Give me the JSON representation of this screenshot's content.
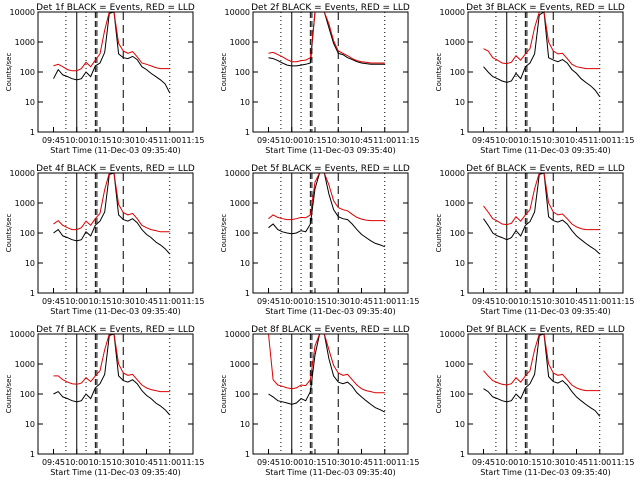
{
  "figure": {
    "xlabel": "Start Time (11-Dec-03 09:35:40)",
    "ylabel": "Counts/sec",
    "x_ticks": [
      "09:45",
      "10:00",
      "10:15",
      "10:30",
      "10:45",
      "11:00",
      "11:15"
    ],
    "y_ticks": [
      "1",
      "10",
      "100",
      "1000",
      "10000"
    ],
    "colors": {
      "events": "#000000",
      "lld": "#dd0000",
      "axes": "#000000",
      "background": "#ffffff"
    }
  },
  "chart_data": [
    {
      "type": "line",
      "title": "Det 1f BLACK = Events, RED = LLD",
      "xlim": [
        "09:35",
        "11:15"
      ],
      "ylim": [
        1,
        10000
      ],
      "yscale": "log",
      "x": [
        "09:45",
        "09:48",
        "09:51",
        "09:54",
        "09:57",
        "10:00",
        "10:03",
        "10:06",
        "10:09",
        "10:12",
        "10:15",
        "10:18",
        "10:21",
        "10:24",
        "10:27",
        "10:30",
        "10:33",
        "10:36",
        "10:39",
        "10:42",
        "10:45",
        "10:48",
        "10:51",
        "10:54",
        "10:57",
        "11:00"
      ],
      "series": [
        {
          "name": "Events",
          "color": "#000000",
          "values": [
            60,
            120,
            80,
            70,
            60,
            55,
            60,
            100,
            70,
            160,
            200,
            450,
            9000,
            10000,
            400,
            300,
            280,
            330,
            260,
            150,
            120,
            90,
            70,
            55,
            40,
            20
          ]
        },
        {
          "name": "LLD",
          "color": "#dd0000",
          "values": [
            160,
            180,
            150,
            120,
            110,
            110,
            130,
            210,
            150,
            250,
            400,
            2500,
            10000,
            10000,
            900,
            500,
            420,
            480,
            320,
            200,
            180,
            160,
            140,
            130,
            130,
            130
          ]
        }
      ]
    },
    {
      "type": "line",
      "title": "Det 2f BLACK = Events, RED = LLD",
      "xlim": [
        "09:35",
        "11:15"
      ],
      "ylim": [
        1,
        10000
      ],
      "yscale": "log",
      "x": [
        "09:45",
        "09:48",
        "09:51",
        "09:54",
        "09:57",
        "10:00",
        "10:03",
        "10:06",
        "10:09",
        "10:12",
        "10:15",
        "10:18",
        "10:21",
        "10:24",
        "10:27",
        "10:30",
        "10:33",
        "10:36",
        "10:39",
        "10:42",
        "10:45",
        "10:48",
        "10:51",
        "10:54",
        "10:57",
        "11:00"
      ],
      "series": [
        {
          "name": "Events",
          "color": "#000000",
          "values": [
            300,
            280,
            240,
            200,
            170,
            160,
            160,
            170,
            180,
            200,
            10000,
            10000,
            10000,
            3000,
            900,
            420,
            380,
            300,
            260,
            220,
            200,
            190,
            180,
            180,
            180,
            180
          ]
        },
        {
          "name": "LLD",
          "color": "#dd0000",
          "values": [
            420,
            450,
            380,
            320,
            260,
            220,
            220,
            240,
            250,
            300,
            10000,
            10000,
            10000,
            4000,
            1100,
            500,
            420,
            350,
            280,
            240,
            220,
            210,
            200,
            200,
            200,
            200
          ]
        }
      ]
    },
    {
      "type": "line",
      "title": "Det 3f BLACK = Events, RED = LLD",
      "xlim": [
        "09:35",
        "11:15"
      ],
      "ylim": [
        1,
        10000
      ],
      "yscale": "log",
      "x": [
        "09:45",
        "09:48",
        "09:51",
        "09:54",
        "09:57",
        "10:00",
        "10:03",
        "10:06",
        "10:09",
        "10:12",
        "10:15",
        "10:18",
        "10:21",
        "10:24",
        "10:27",
        "10:30",
        "10:33",
        "10:36",
        "10:39",
        "10:42",
        "10:45",
        "10:48",
        "10:51",
        "10:54",
        "10:57",
        "11:00"
      ],
      "series": [
        {
          "name": "Events",
          "color": "#000000",
          "values": [
            150,
            100,
            70,
            60,
            50,
            45,
            50,
            90,
            60,
            150,
            200,
            400,
            8000,
            10000,
            300,
            250,
            220,
            260,
            200,
            120,
            90,
            60,
            45,
            35,
            25,
            15
          ]
        },
        {
          "name": "LLD",
          "color": "#dd0000",
          "values": [
            600,
            500,
            300,
            250,
            200,
            190,
            210,
            350,
            250,
            400,
            600,
            3000,
            10000,
            10000,
            1000,
            500,
            400,
            420,
            280,
            180,
            150,
            140,
            130,
            130,
            130,
            130
          ]
        }
      ]
    },
    {
      "type": "line",
      "title": "Det 4f BLACK = Events, RED = LLD",
      "xlim": [
        "09:35",
        "11:15"
      ],
      "ylim": [
        1,
        10000
      ],
      "yscale": "log",
      "x": [
        "09:45",
        "09:48",
        "09:51",
        "09:54",
        "09:57",
        "10:00",
        "10:03",
        "10:06",
        "10:09",
        "10:12",
        "10:15",
        "10:18",
        "10:21",
        "10:24",
        "10:27",
        "10:30",
        "10:33",
        "10:36",
        "10:39",
        "10:42",
        "10:45",
        "10:48",
        "10:51",
        "10:54",
        "10:57",
        "11:00"
      ],
      "series": [
        {
          "name": "Events",
          "color": "#000000",
          "values": [
            100,
            130,
            80,
            70,
            60,
            55,
            60,
            110,
            80,
            180,
            250,
            500,
            9000,
            10000,
            400,
            280,
            250,
            300,
            220,
            130,
            90,
            70,
            50,
            40,
            30,
            20
          ]
        },
        {
          "name": "LLD",
          "color": "#dd0000",
          "values": [
            200,
            260,
            180,
            150,
            130,
            130,
            150,
            250,
            180,
            300,
            450,
            2800,
            10000,
            10000,
            900,
            480,
            400,
            450,
            300,
            180,
            150,
            130,
            120,
            110,
            110,
            110
          ]
        }
      ]
    },
    {
      "type": "line",
      "title": "Det 5f BLACK = Events, RED = LLD",
      "xlim": [
        "09:35",
        "11:15"
      ],
      "ylim": [
        1,
        10000
      ],
      "yscale": "log",
      "x": [
        "09:45",
        "09:48",
        "09:51",
        "09:54",
        "09:57",
        "10:00",
        "10:03",
        "10:06",
        "10:09",
        "10:12",
        "10:15",
        "10:18",
        "10:21",
        "10:24",
        "10:27",
        "10:30",
        "10:33",
        "10:36",
        "10:39",
        "10:42",
        "10:45",
        "10:48",
        "10:51",
        "10:54",
        "10:57",
        "11:00"
      ],
      "series": [
        {
          "name": "Events",
          "color": "#000000",
          "values": [
            150,
            200,
            130,
            110,
            100,
            95,
            100,
            120,
            110,
            200,
            3000,
            10000,
            10000,
            2000,
            600,
            350,
            300,
            280,
            200,
            130,
            90,
            70,
            55,
            45,
            40,
            35
          ]
        },
        {
          "name": "LLD",
          "color": "#dd0000",
          "values": [
            300,
            400,
            330,
            300,
            280,
            280,
            300,
            330,
            320,
            400,
            5000,
            10000,
            10000,
            4000,
            1200,
            700,
            600,
            550,
            420,
            330,
            290,
            270,
            260,
            260,
            260,
            260
          ]
        }
      ]
    },
    {
      "type": "line",
      "title": "Det 6f BLACK = Events, RED = LLD",
      "xlim": [
        "09:35",
        "11:15"
      ],
      "ylim": [
        1,
        10000
      ],
      "yscale": "log",
      "x": [
        "09:45",
        "09:48",
        "09:51",
        "09:54",
        "09:57",
        "10:00",
        "10:03",
        "10:06",
        "10:09",
        "10:12",
        "10:15",
        "10:18",
        "10:21",
        "10:24",
        "10:27",
        "10:30",
        "10:33",
        "10:36",
        "10:39",
        "10:42",
        "10:45",
        "10:48",
        "10:51",
        "10:54",
        "10:57",
        "11:00"
      ],
      "series": [
        {
          "name": "Events",
          "color": "#000000",
          "values": [
            300,
            180,
            100,
            80,
            70,
            60,
            70,
            120,
            80,
            180,
            240,
            500,
            9000,
            10000,
            350,
            260,
            230,
            270,
            200,
            120,
            80,
            60,
            45,
            35,
            28,
            20
          ]
        },
        {
          "name": "LLD",
          "color": "#dd0000",
          "values": [
            800,
            500,
            300,
            250,
            200,
            190,
            210,
            350,
            250,
            400,
            600,
            3000,
            10000,
            10000,
            1000,
            500,
            400,
            430,
            300,
            200,
            160,
            140,
            130,
            130,
            130,
            130
          ]
        }
      ]
    },
    {
      "type": "line",
      "title": "Det 7f BLACK = Events, RED = LLD",
      "xlim": [
        "09:35",
        "11:15"
      ],
      "ylim": [
        1,
        10000
      ],
      "yscale": "log",
      "x": [
        "09:45",
        "09:48",
        "09:51",
        "09:54",
        "09:57",
        "10:00",
        "10:03",
        "10:06",
        "10:09",
        "10:12",
        "10:15",
        "10:18",
        "10:21",
        "10:24",
        "10:27",
        "10:30",
        "10:33",
        "10:36",
        "10:39",
        "10:42",
        "10:45",
        "10:48",
        "10:51",
        "10:54",
        "10:57",
        "11:00"
      ],
      "series": [
        {
          "name": "Events",
          "color": "#000000",
          "values": [
            100,
            120,
            80,
            70,
            60,
            55,
            60,
            100,
            70,
            160,
            220,
            450,
            9000,
            10000,
            400,
            280,
            250,
            300,
            220,
            130,
            90,
            70,
            50,
            40,
            30,
            20
          ]
        },
        {
          "name": "LLD",
          "color": "#dd0000",
          "values": [
            400,
            400,
            300,
            250,
            220,
            210,
            230,
            350,
            260,
            400,
            600,
            3000,
            10000,
            10000,
            1000,
            500,
            420,
            450,
            300,
            200,
            160,
            140,
            130,
            120,
            120,
            120
          ]
        }
      ]
    },
    {
      "type": "line",
      "title": "Det 8f BLACK = Events, RED = LLD",
      "xlim": [
        "09:35",
        "11:15"
      ],
      "ylim": [
        1,
        10000
      ],
      "yscale": "log",
      "x": [
        "09:45",
        "09:48",
        "09:51",
        "09:54",
        "09:57",
        "10:00",
        "10:03",
        "10:06",
        "10:09",
        "10:12",
        "10:15",
        "10:18",
        "10:21",
        "10:24",
        "10:27",
        "10:30",
        "10:33",
        "10:36",
        "10:39",
        "10:42",
        "10:45",
        "10:48",
        "10:51",
        "10:54",
        "10:57",
        "11:00"
      ],
      "series": [
        {
          "name": "Events",
          "color": "#000000",
          "values": [
            100,
            80,
            60,
            55,
            50,
            45,
            50,
            70,
            60,
            120,
            2000,
            10000,
            10000,
            1500,
            400,
            250,
            220,
            250,
            180,
            110,
            80,
            60,
            45,
            35,
            30,
            25
          ]
        },
        {
          "name": "LLD",
          "color": "#dd0000",
          "values": [
            10000,
            300,
            200,
            180,
            160,
            150,
            160,
            200,
            190,
            300,
            4000,
            10000,
            10000,
            3000,
            900,
            500,
            420,
            450,
            300,
            200,
            150,
            130,
            120,
            110,
            110,
            110
          ]
        }
      ]
    },
    {
      "type": "line",
      "title": "Det 9f BLACK = Events, RED = LLD",
      "xlim": [
        "09:35",
        "11:15"
      ],
      "ylim": [
        1,
        10000
      ],
      "yscale": "log",
      "x": [
        "09:45",
        "09:48",
        "09:51",
        "09:54",
        "09:57",
        "10:00",
        "10:03",
        "10:06",
        "10:09",
        "10:12",
        "10:15",
        "10:18",
        "10:21",
        "10:24",
        "10:27",
        "10:30",
        "10:33",
        "10:36",
        "10:39",
        "10:42",
        "10:45",
        "10:48",
        "10:51",
        "10:54",
        "10:57",
        "11:00"
      ],
      "series": [
        {
          "name": "Events",
          "color": "#000000",
          "values": [
            150,
            120,
            80,
            70,
            60,
            55,
            60,
            100,
            70,
            160,
            220,
            450,
            9000,
            10000,
            380,
            260,
            230,
            280,
            200,
            120,
            80,
            60,
            45,
            35,
            28,
            18
          ]
        },
        {
          "name": "LLD",
          "color": "#dd0000",
          "values": [
            600,
            400,
            280,
            240,
            210,
            200,
            220,
            350,
            250,
            400,
            600,
            3000,
            10000,
            10000,
            1000,
            500,
            420,
            450,
            300,
            200,
            160,
            140,
            130,
            130,
            130,
            130
          ]
        }
      ]
    }
  ]
}
